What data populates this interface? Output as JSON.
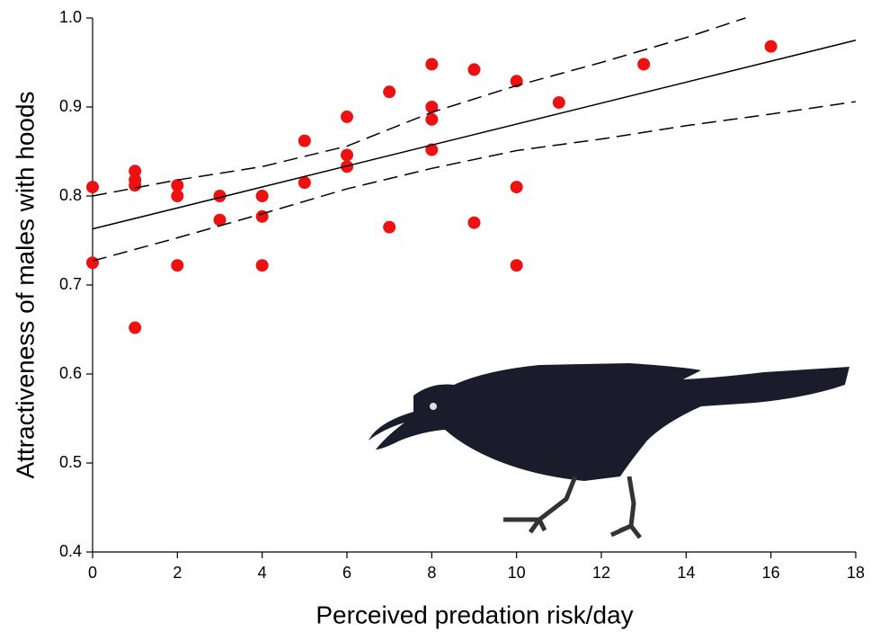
{
  "chart_data": {
    "type": "scatter",
    "x_label": "Perceived predation risk/day",
    "y_label": "Attractiveness of males with hoods",
    "xlim": [
      0,
      18
    ],
    "xticks": [
      0,
      2,
      4,
      6,
      8,
      10,
      12,
      14,
      16,
      18
    ],
    "ylim": [
      0.4,
      1.0
    ],
    "yticks": [
      0.4,
      0.5,
      0.6,
      0.7,
      0.8,
      0.9,
      {
        "value": 1.0,
        "label": "1.0"
      }
    ],
    "series": [
      {
        "kind": "points",
        "color": "#ee1111",
        "x": [
          0,
          0,
          1,
          1,
          1,
          1,
          2,
          2,
          2,
          3,
          3,
          4,
          4,
          4,
          5,
          5,
          6,
          6,
          6,
          7,
          7,
          8,
          8,
          8,
          8,
          9,
          9,
          10,
          10,
          10,
          11,
          13,
          16
        ],
        "values": [
          0.81,
          0.725,
          0.828,
          0.818,
          0.812,
          0.652,
          0.812,
          0.8,
          0.722,
          0.8,
          0.773,
          0.8,
          0.777,
          0.722,
          0.862,
          0.815,
          0.889,
          0.846,
          0.833,
          0.917,
          0.765,
          0.948,
          0.9,
          0.886,
          0.852,
          0.942,
          0.77,
          0.929,
          0.81,
          0.722,
          0.905,
          0.948,
          0.968
        ]
      },
      {
        "kind": "line",
        "color": "#000000",
        "dashed": false,
        "x": [
          0,
          18
        ],
        "values": [
          0.763,
          0.975
        ]
      },
      {
        "kind": "line",
        "color": "#000000",
        "dashed": true,
        "x": [
          0,
          2,
          4,
          6,
          8,
          10,
          12,
          14,
          15.4
        ],
        "values": [
          0.8,
          0.818,
          0.833,
          0.856,
          0.894,
          0.924,
          0.95,
          0.978,
          1.0
        ]
      },
      {
        "kind": "line",
        "color": "#000000",
        "dashed": true,
        "x": [
          0,
          2,
          4,
          6,
          8,
          10,
          12,
          14,
          16,
          18
        ],
        "values": [
          0.727,
          0.753,
          0.78,
          0.808,
          0.831,
          0.851,
          0.864,
          0.879,
          0.892,
          0.906
        ]
      }
    ]
  }
}
